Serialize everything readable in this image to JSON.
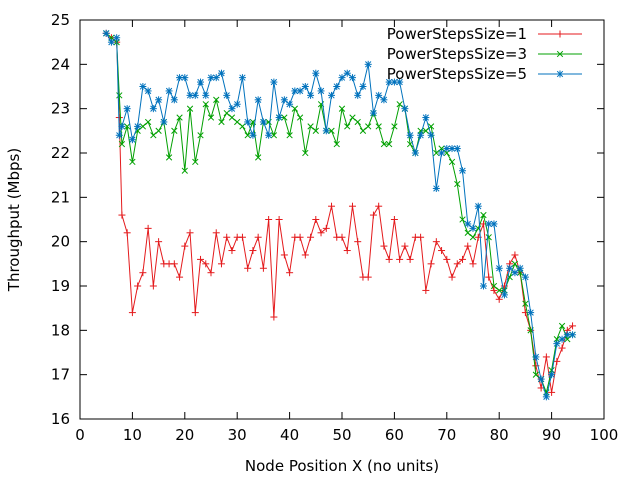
{
  "chart_data": {
    "type": "line",
    "title": "",
    "xlabel": "Node Position X (no units)",
    "ylabel": "Throughput (Mbps)",
    "xlim": [
      0,
      100
    ],
    "ylim": [
      16,
      25
    ],
    "xticks": [
      "0",
      "10",
      "20",
      "30",
      "40",
      "50",
      "60",
      "70",
      "80",
      "90",
      "100"
    ],
    "yticks": [
      "16",
      "17",
      "18",
      "19",
      "20",
      "21",
      "22",
      "23",
      "24",
      "25"
    ],
    "grid": false,
    "legend_position": "top-right",
    "series": [
      {
        "name": "PowerStepsSize=1",
        "color": "#e41a1c",
        "marker": "plus",
        "x": [
          5,
          6,
          7,
          7.5,
          8,
          9,
          10,
          11,
          12,
          13,
          14,
          15,
          16,
          17,
          18,
          19,
          20,
          21,
          22,
          23,
          24,
          25,
          26,
          27,
          28,
          29,
          30,
          31,
          32,
          33,
          34,
          35,
          36,
          37,
          38,
          39,
          40,
          41,
          42,
          43,
          44,
          45,
          46,
          47,
          48,
          49,
          50,
          51,
          52,
          53,
          54,
          55,
          56,
          57,
          58,
          59,
          60,
          61,
          62,
          63,
          64,
          65,
          66,
          67,
          68,
          69,
          70,
          71,
          72,
          73,
          74,
          75,
          76,
          77,
          78,
          79,
          80,
          81,
          82,
          83,
          84,
          85,
          86,
          87,
          88,
          89,
          90,
          91,
          92,
          93,
          94
        ],
        "y": [
          24.7,
          24.6,
          24.5,
          22.8,
          20.6,
          20.2,
          18.4,
          19.0,
          19.3,
          20.3,
          19.0,
          20.0,
          19.5,
          19.5,
          19.5,
          19.2,
          19.9,
          20.2,
          18.4,
          19.6,
          19.5,
          19.3,
          20.2,
          19.5,
          20.1,
          19.8,
          20.1,
          20.1,
          19.4,
          19.8,
          20.1,
          19.4,
          20.5,
          18.3,
          20.5,
          19.7,
          19.3,
          20.1,
          20.1,
          19.7,
          20.1,
          20.5,
          20.2,
          20.3,
          20.8,
          20.1,
          20.1,
          19.8,
          20.8,
          20.0,
          19.2,
          19.2,
          20.6,
          20.8,
          19.9,
          19.6,
          20.5,
          19.6,
          19.9,
          19.6,
          20.1,
          20.1,
          18.9,
          19.5,
          20.0,
          19.8,
          19.6,
          19.2,
          19.5,
          19.6,
          19.9,
          19.5,
          20.1,
          20.4,
          19.2,
          18.9,
          18.7,
          19.0,
          19.5,
          19.7,
          19.3,
          18.4,
          18.0,
          17.2,
          16.7,
          17.4,
          16.6,
          17.3,
          17.6,
          18.0,
          18.1
        ]
      },
      {
        "name": "PowerStepsSize=3",
        "color": "#00a000",
        "marker": "cross",
        "x": [
          5,
          6,
          7,
          7.5,
          8,
          9,
          10,
          11,
          12,
          13,
          14,
          15,
          16,
          17,
          18,
          19,
          20,
          21,
          22,
          23,
          24,
          25,
          26,
          27,
          28,
          29,
          30,
          31,
          32,
          33,
          34,
          35,
          36,
          37,
          38,
          39,
          40,
          41,
          42,
          43,
          44,
          45,
          46,
          47,
          48,
          49,
          50,
          51,
          52,
          53,
          54,
          55,
          56,
          57,
          58,
          59,
          60,
          61,
          62,
          63,
          64,
          65,
          66,
          67,
          68,
          69,
          70,
          71,
          72,
          73,
          74,
          75,
          76,
          77,
          78,
          79,
          80,
          81,
          82,
          83,
          84,
          85,
          86,
          87,
          88,
          89,
          90,
          91,
          92,
          93,
          94
        ],
        "y": [
          24.7,
          24.6,
          24.5,
          23.3,
          22.2,
          22.6,
          21.8,
          22.5,
          22.6,
          22.7,
          22.4,
          22.5,
          22.7,
          21.9,
          22.5,
          22.8,
          21.6,
          23.0,
          21.8,
          22.4,
          23.1,
          22.8,
          23.2,
          22.7,
          22.9,
          22.8,
          22.7,
          22.6,
          22.4,
          22.7,
          21.9,
          22.7,
          22.7,
          22.4,
          22.8,
          22.8,
          22.4,
          23.0,
          22.8,
          22.0,
          22.6,
          22.5,
          23.1,
          22.5,
          22.5,
          22.2,
          23.0,
          22.6,
          22.8,
          22.7,
          22.5,
          22.6,
          22.9,
          22.6,
          22.2,
          22.2,
          22.6,
          23.1,
          23.0,
          22.2,
          22.0,
          22.5,
          22.5,
          22.6,
          22.0,
          22.1,
          22.0,
          21.8,
          21.3,
          20.5,
          20.2,
          20.1,
          20.3,
          20.6,
          20.1,
          19.0,
          18.9,
          18.9,
          19.2,
          19.5,
          19.3,
          18.6,
          18.0,
          17.0,
          16.9,
          16.6,
          17.1,
          17.8,
          18.1,
          17.8,
          17.9
        ]
      },
      {
        "name": "PowerStepsSize=5",
        "color": "#0072bd",
        "marker": "star",
        "x": [
          5,
          6,
          7,
          7.5,
          8,
          9,
          10,
          11,
          12,
          13,
          14,
          15,
          16,
          17,
          18,
          19,
          20,
          21,
          22,
          23,
          24,
          25,
          26,
          27,
          28,
          29,
          30,
          31,
          32,
          33,
          34,
          35,
          36,
          37,
          38,
          39,
          40,
          41,
          42,
          43,
          44,
          45,
          46,
          47,
          48,
          49,
          50,
          51,
          52,
          53,
          54,
          55,
          56,
          57,
          58,
          59,
          60,
          61,
          62,
          63,
          64,
          65,
          66,
          67,
          68,
          69,
          70,
          71,
          72,
          73,
          74,
          75,
          76,
          77,
          78,
          79,
          80,
          81,
          82,
          83,
          84,
          85,
          86,
          87,
          88,
          89,
          90,
          91,
          92,
          93,
          94
        ],
        "y": [
          24.7,
          24.5,
          24.6,
          22.4,
          22.6,
          23.0,
          22.3,
          22.6,
          23.5,
          23.4,
          23.0,
          23.2,
          22.7,
          23.4,
          23.2,
          23.7,
          23.7,
          23.3,
          23.3,
          23.6,
          23.3,
          23.7,
          23.7,
          23.8,
          23.3,
          23.0,
          23.1,
          23.7,
          22.7,
          22.4,
          23.2,
          22.7,
          22.4,
          23.6,
          22.8,
          23.2,
          23.1,
          23.4,
          23.4,
          23.5,
          23.3,
          23.8,
          23.4,
          22.5,
          23.3,
          23.5,
          23.7,
          23.8,
          23.7,
          23.3,
          23.5,
          24.0,
          22.9,
          23.3,
          23.2,
          23.6,
          23.6,
          23.6,
          23.0,
          22.4,
          22.0,
          22.4,
          22.8,
          22.4,
          21.2,
          22.0,
          22.1,
          22.1,
          22.1,
          21.6,
          20.4,
          20.3,
          20.8,
          19.0,
          20.4,
          20.4,
          19.4,
          18.8,
          19.4,
          19.3,
          19.4,
          19.2,
          18.4,
          17.4,
          16.9,
          16.5,
          17.0,
          17.7,
          17.8,
          17.9,
          17.9
        ]
      }
    ]
  }
}
